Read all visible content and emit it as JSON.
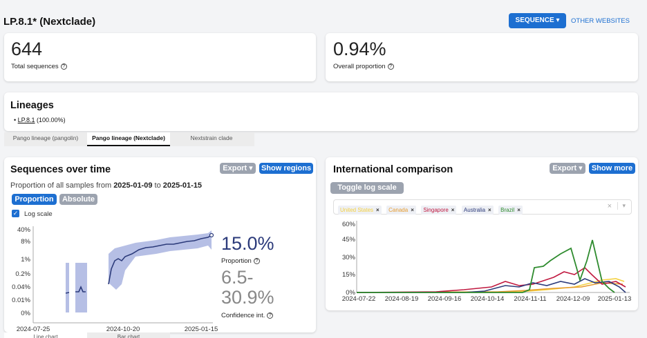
{
  "header": {
    "title": "LP.8.1* (Nextclade)",
    "sequence_button": "SEQUENCE",
    "other_websites": "OTHER WEBSITES"
  },
  "stats": {
    "total_sequences": {
      "value": "644",
      "label": "Total sequences"
    },
    "overall_proportion": {
      "value": "0.94%",
      "label": "Overall proportion"
    }
  },
  "lineages": {
    "title": "Lineages",
    "items": [
      {
        "name": "LP.8.1",
        "share": "(100.00%)"
      }
    ]
  },
  "tabs": [
    "Pango lineage (pangolin)",
    "Pango lineage (Nextclade)",
    "Nextstrain clade"
  ],
  "active_tab": 1,
  "sequences_over_time": {
    "title": "Sequences over time",
    "export_label": "Export ▾",
    "show_regions_label": "Show regions",
    "subtitle_prefix": "Proportion of all samples from",
    "date_from": "2025-01-09",
    "subtitle_to": "to",
    "date_to": "2025-01-15",
    "toggle_proportion": "Proportion",
    "toggle_absolute": "Absolute",
    "log_scale_label": "Log scale",
    "proportion_value": "15.0%",
    "proportion_label": "Proportion",
    "ci_value_line1": "6.5-",
    "ci_value_line2": "30.9%",
    "ci_label": "Confidence int.",
    "bottom_tabs": [
      "Line chart",
      "Bar chart"
    ]
  },
  "international": {
    "title": "International comparison",
    "export_label": "Export ▾",
    "show_more_label": "Show more",
    "toggle_log_label": "Toggle log scale",
    "countries": [
      {
        "name": "United States",
        "color": "#f4d03f"
      },
      {
        "name": "Canada",
        "color": "#e69b2e"
      },
      {
        "name": "Singapore",
        "color": "#c0183f"
      },
      {
        "name": "Australia",
        "color": "#2b3a7a"
      },
      {
        "name": "Brazil",
        "color": "#2e8b2e"
      }
    ]
  },
  "chart_data": [
    {
      "type": "area",
      "title": "Sequences over time",
      "ylabel": "",
      "xlabel": "",
      "y_scale": "log",
      "y_ticks": [
        "40%",
        "8%",
        "1%",
        "0.2%",
        "0.04%",
        "0.01%",
        "0%"
      ],
      "x_ticks": [
        "2024-07-25",
        "2024-10-20",
        "2025-01-15"
      ],
      "series": [
        {
          "name": "Proportion",
          "note": "line with confidence band",
          "x": [
            "2024-08-22",
            "2024-08-25",
            "2024-09-01",
            "2024-09-05",
            "2024-10-01",
            "2024-10-10",
            "2024-10-20",
            "2024-11-01",
            "2024-11-15",
            "2024-12-01",
            "2024-12-15",
            "2025-01-01",
            "2025-01-10",
            "2025-01-15"
          ],
          "y": [
            0.03,
            0.03,
            0.03,
            0.05,
            0.05,
            0.2,
            0.5,
            1.0,
            2.0,
            3.0,
            4.0,
            5.0,
            8.0,
            15.0
          ]
        }
      ],
      "grid": false,
      "legend": "none"
    },
    {
      "type": "line",
      "title": "International comparison",
      "y_ticks": [
        "60%",
        "45%",
        "30%",
        "15%",
        "0%"
      ],
      "ylim": [
        0,
        60
      ],
      "x": [
        "2024-07-22",
        "2024-08-19",
        "2024-09-16",
        "2024-10-14",
        "2024-11-11",
        "2024-12-09",
        "2025-01-13"
      ],
      "series": [
        {
          "name": "United States",
          "values": [
            0,
            0,
            0,
            0,
            0.5,
            2,
            12
          ]
        },
        {
          "name": "Canada",
          "values": [
            0,
            0,
            0,
            0.5,
            1,
            3,
            8
          ]
        },
        {
          "name": "Singapore",
          "values": [
            0,
            0,
            0.5,
            2,
            6,
            12,
            9
          ]
        },
        {
          "name": "Australia",
          "values": [
            0,
            0,
            0,
            1,
            3,
            8,
            5
          ]
        },
        {
          "name": "Brazil",
          "values": [
            0,
            0,
            0,
            0,
            22,
            45,
            2
          ]
        }
      ],
      "legend": "top"
    }
  ]
}
